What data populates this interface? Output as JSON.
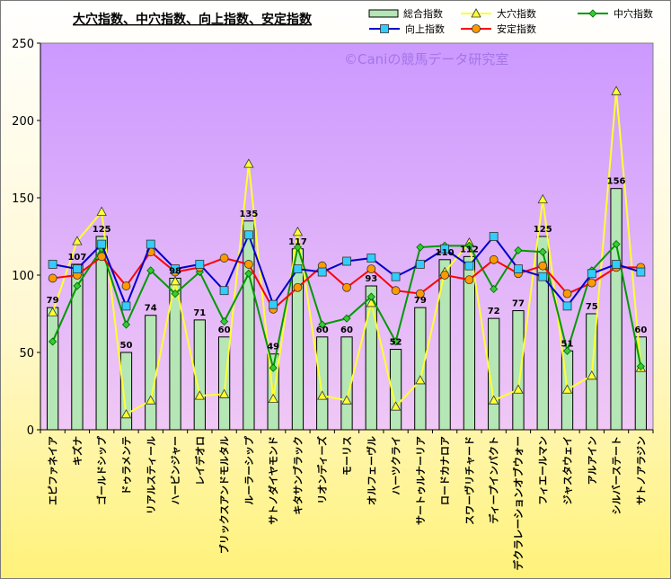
{
  "chart_data": {
    "type": "bar+line",
    "title": "大穴指数、中穴指数、向上指数、安定指数",
    "watermark": "©Caniの競馬データ研究室",
    "categories": [
      "エピファネイア",
      "キズナ",
      "ゴールドシップ",
      "ドゥラメンテ",
      "リアルスティール",
      "ハービンジャー",
      "レイデオロ",
      "ブリックスアンドモルタル",
      "ルーラーシップ",
      "サトノダイヤモンド",
      "キタサンブラック",
      "リオンディーズ",
      "モーリス",
      "オルフェーヴル",
      "ハーツクライ",
      "サートゥルナーリア",
      "ロードカナロア",
      "スワーヴリチャード",
      "ディープインパクト",
      "デクラレーションオブウォー",
      "フィエールマン",
      "ジャスタウェイ",
      "アルアイン",
      "シルバーステート",
      "サトノアラジン"
    ],
    "ylim": [
      0,
      250
    ],
    "yticks": [
      0,
      50,
      100,
      150,
      200,
      250
    ],
    "grid": false,
    "plot_background": [
      "#cc99ff",
      "#f0c8f5"
    ],
    "legend_position": "top",
    "bar_series": {
      "name": "総合指数",
      "color": "#b5e6b5",
      "values": [
        79,
        107,
        125,
        50,
        74,
        98,
        71,
        60,
        135,
        49,
        117,
        60,
        60,
        93,
        52,
        79,
        110,
        112,
        72,
        77,
        125,
        51,
        75,
        156,
        60
      ],
      "labels": [
        "79",
        "107",
        "125",
        "50",
        "74",
        "98",
        "71",
        "60",
        "135",
        "49",
        "117",
        "60",
        "60",
        "93",
        "52",
        "79",
        "110",
        "112",
        "72",
        "77",
        "125",
        "51",
        "75",
        "156",
        "60"
      ]
    },
    "line_series": [
      {
        "name": "大穴指数",
        "color": "#ffff33",
        "marker": "triangle",
        "marker_fill": "#ffff33",
        "values": [
          76,
          122,
          141,
          10,
          19,
          96,
          22,
          23,
          172,
          20,
          128,
          22,
          19,
          82,
          15,
          32,
          102,
          121,
          19,
          26,
          149,
          26,
          35,
          219,
          40
        ]
      },
      {
        "name": "中穴指数",
        "color": "#009900",
        "marker": "diamond",
        "marker_fill": "#33cc33",
        "values": [
          57,
          93,
          117,
          68,
          103,
          88,
          102,
          70,
          101,
          40,
          118,
          68,
          72,
          86,
          57,
          118,
          119,
          119,
          91,
          116,
          115,
          51,
          103,
          120,
          41
        ]
      },
      {
        "name": "向上指数",
        "color": "#0000cc",
        "marker": "square",
        "marker_fill": "#33ccff",
        "values": [
          107,
          104,
          120,
          80,
          120,
          104,
          107,
          90,
          126,
          81,
          104,
          102,
          109,
          111,
          99,
          107,
          117,
          106,
          125,
          104,
          99,
          80,
          101,
          107,
          102
        ]
      },
      {
        "name": "安定指数",
        "color": "#ff0000",
        "marker": "circle",
        "marker_fill": "#ff9900",
        "values": [
          98,
          100,
          112,
          93,
          115,
          102,
          105,
          111,
          107,
          78,
          92,
          106,
          92,
          104,
          90,
          88,
          100,
          97,
          110,
          101,
          106,
          88,
          95,
          105,
          105
        ]
      }
    ]
  }
}
